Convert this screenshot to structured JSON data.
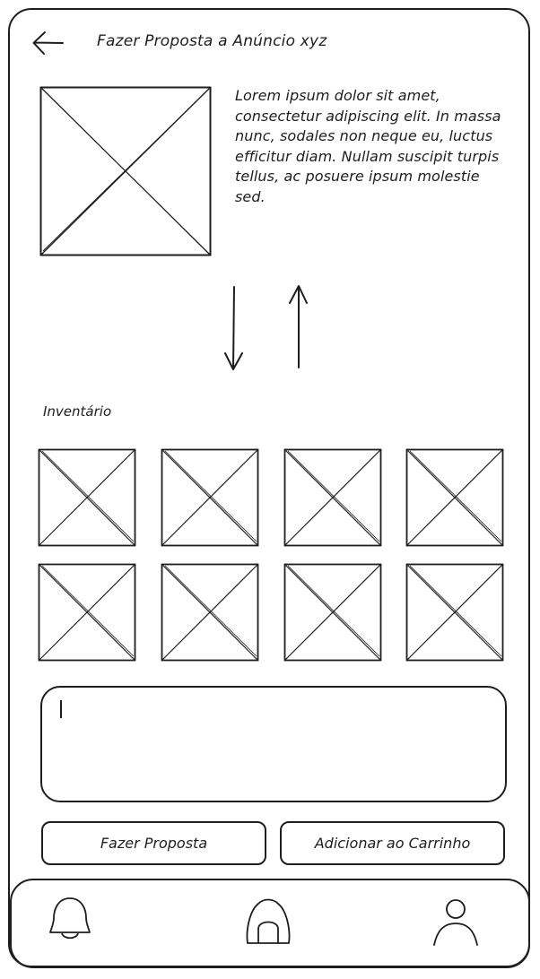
{
  "header": {
    "title": "Fazer Proposta a Anúncio xyz",
    "back_icon": "arrow-left-icon"
  },
  "listing": {
    "image_icon": "image-placeholder",
    "description": "Lorem ipsum dolor sit amet, consectetur adipiscing elit. In massa nunc, sodales non neque eu, luctus efficitur diam. Nullam suscipit turpis tellus, ac posuere ipsum molestie sed."
  },
  "swap": {
    "down_icon": "arrow-down-icon",
    "up_icon": "arrow-up-icon"
  },
  "inventory": {
    "label": "Inventário",
    "item_count": 8
  },
  "message": {
    "value": ""
  },
  "actions": {
    "propose_label": "Fazer Proposta",
    "add_to_cart_label": "Adicionar ao Carrinho"
  },
  "tabbar": {
    "items": [
      "bell-icon",
      "home-icon",
      "user-icon"
    ]
  }
}
